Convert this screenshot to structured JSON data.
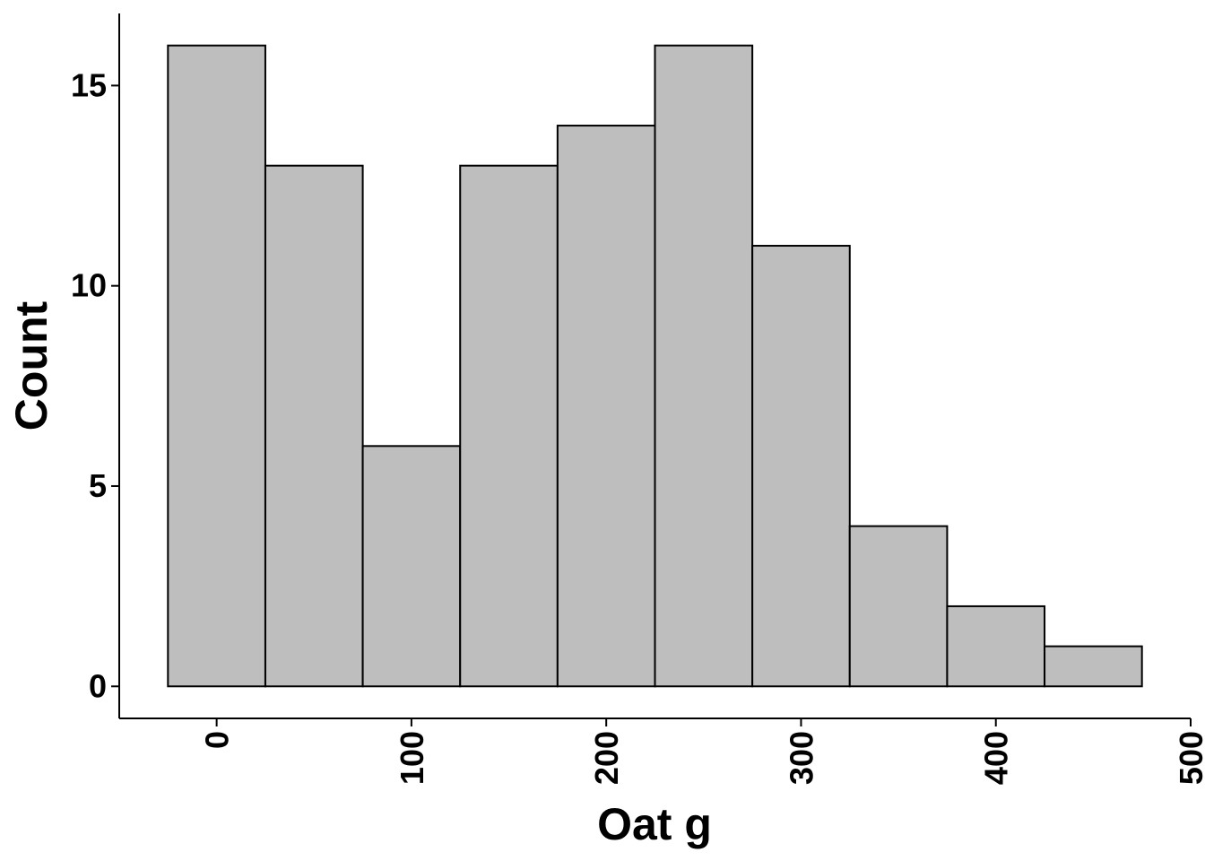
{
  "chart_data": {
    "type": "bar",
    "subtype": "histogram",
    "title": "",
    "xlabel": "Oat g",
    "ylabel": "Count",
    "bin_width": 50,
    "bins": [
      {
        "x_start": -25,
        "x_end": 25,
        "count": 16
      },
      {
        "x_start": 25,
        "x_end": 75,
        "count": 13
      },
      {
        "x_start": 75,
        "x_end": 125,
        "count": 6
      },
      {
        "x_start": 125,
        "x_end": 175,
        "count": 13
      },
      {
        "x_start": 175,
        "x_end": 225,
        "count": 14
      },
      {
        "x_start": 225,
        "x_end": 275,
        "count": 16
      },
      {
        "x_start": 275,
        "x_end": 325,
        "count": 11
      },
      {
        "x_start": 325,
        "x_end": 375,
        "count": 4
      },
      {
        "x_start": 375,
        "x_end": 425,
        "count": 2
      },
      {
        "x_start": 425,
        "x_end": 475,
        "count": 1
      }
    ],
    "xlim": [
      -50,
      500
    ],
    "ylim": [
      -0.8,
      16.8
    ],
    "x_ticks": [
      0,
      100,
      200,
      300,
      400,
      500
    ],
    "x_tick_labels": [
      "0",
      "100",
      "200",
      "300",
      "400",
      "500"
    ],
    "y_ticks": [
      0,
      5,
      10,
      15
    ],
    "y_tick_labels": [
      "0",
      "5",
      "10",
      "15"
    ],
    "x_tick_label_rotation": "vertical",
    "grid": false,
    "legend": "none",
    "bar_fill": "#bebebe",
    "bar_outline": "#000000"
  }
}
